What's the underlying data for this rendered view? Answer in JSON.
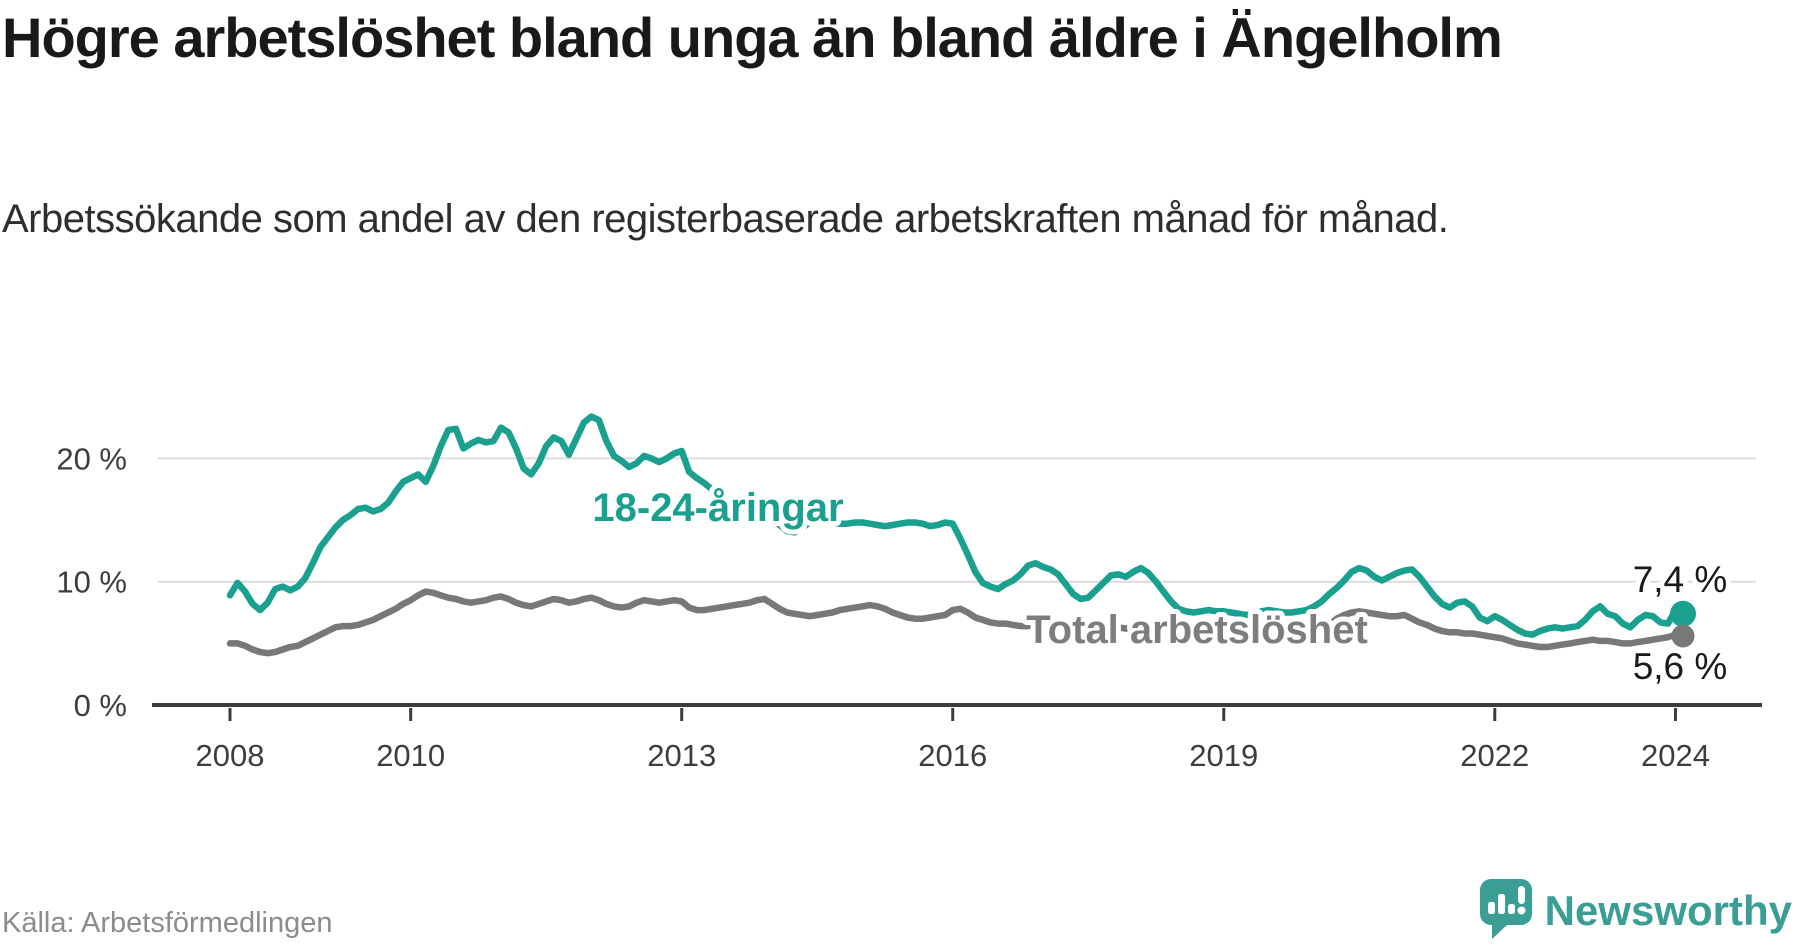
{
  "title": "Högre arbetslöshet bland unga än bland äldre i Ängelholm",
  "subtitle": "Arbetssökande som andel av den registerbaserade arbetskraften månad för månad.",
  "source": "Källa: Arbetsförmedlingen",
  "brand": {
    "name": "Newsworthy",
    "color": "#3a9e94"
  },
  "colors": {
    "young_line": "#1aa08e",
    "total_line": "#787878",
    "total_label": "#7d7d7d",
    "grid": "#dcdcdc",
    "axis": "#3c3c3c",
    "tick_text": "#3d3d3d",
    "end_label_text": "#1a1a1a"
  },
  "chart_data": {
    "type": "line",
    "x_unit": "month",
    "x_range": [
      "2008-01",
      "2024-02"
    ],
    "x_tick_labels": [
      "2008",
      "2010",
      "2013",
      "2016",
      "2019",
      "2022",
      "2024"
    ],
    "y_tick_labels": [
      "0 %",
      "10 %",
      "20 %"
    ],
    "y_tick_values": [
      0,
      10,
      20
    ],
    "ylim": [
      0,
      24
    ],
    "grid": "horizontal",
    "legend_position": "inline-labels",
    "series": [
      {
        "name": "18-24-åringar",
        "color": "#1aa08e",
        "end_label": "7,4 %",
        "end_value": 7.4,
        "values": [
          8.9,
          9.9,
          9.2,
          8.2,
          7.7,
          8.3,
          9.4,
          9.6,
          9.3,
          9.6,
          10.3,
          11.5,
          12.8,
          13.6,
          14.4,
          15.0,
          15.4,
          15.9,
          16.0,
          15.7,
          15.9,
          16.4,
          17.3,
          18.1,
          18.4,
          18.7,
          18.1,
          19.4,
          21.0,
          22.3,
          22.4,
          20.8,
          21.2,
          21.5,
          21.3,
          21.4,
          22.5,
          22.1,
          20.8,
          19.2,
          18.7,
          19.6,
          21.0,
          21.7,
          21.4,
          20.3,
          21.6,
          22.9,
          23.4,
          23.1,
          21.4,
          20.2,
          19.8,
          19.3,
          19.6,
          20.2,
          20.0,
          19.7,
          20.0,
          20.4,
          20.6,
          18.9,
          18.4,
          18.0,
          17.5,
          17.0,
          16.6,
          16.2,
          15.9,
          15.7,
          15.6,
          15.5,
          15.2,
          14.6,
          14.1,
          14.0,
          14.4,
          14.8,
          15.0,
          14.9,
          14.8,
          14.7,
          14.7,
          14.8,
          14.8,
          14.7,
          14.6,
          14.5,
          14.6,
          14.7,
          14.8,
          14.8,
          14.7,
          14.5,
          14.6,
          14.8,
          14.7,
          13.5,
          12.2,
          10.8,
          9.9,
          9.6,
          9.4,
          9.8,
          10.1,
          10.6,
          11.3,
          11.5,
          11.2,
          11.0,
          10.6,
          9.8,
          9.0,
          8.6,
          8.7,
          9.3,
          9.9,
          10.5,
          10.6,
          10.4,
          10.8,
          11.1,
          10.7,
          10.0,
          9.2,
          8.4,
          7.8,
          7.6,
          7.5,
          7.6,
          7.7,
          7.6,
          7.6,
          7.5,
          7.4,
          7.3,
          7.4,
          7.6,
          7.7,
          7.6,
          7.5,
          7.5,
          7.6,
          7.7,
          8.0,
          8.4,
          9.0,
          9.5,
          10.1,
          10.8,
          11.1,
          10.9,
          10.4,
          10.1,
          10.4,
          10.7,
          10.9,
          11.0,
          10.4,
          9.6,
          8.8,
          8.2,
          7.9,
          8.3,
          8.4,
          8.0,
          7.1,
          6.8,
          7.2,
          6.9,
          6.5,
          6.1,
          5.8,
          5.7,
          6.0,
          6.2,
          6.3,
          6.2,
          6.3,
          6.4,
          6.9,
          7.6,
          8.0,
          7.4,
          7.2,
          6.6,
          6.3,
          6.9,
          7.3,
          7.2,
          6.7,
          6.6,
          7.7,
          7.4
        ]
      },
      {
        "name": "Total arbetslöshet",
        "color": "#787878",
        "label_color": "#7d7d7d",
        "end_label": "5,6 %",
        "end_value": 5.6,
        "values": [
          5.0,
          5.0,
          4.8,
          4.5,
          4.3,
          4.2,
          4.3,
          4.5,
          4.7,
          4.8,
          5.1,
          5.4,
          5.7,
          6.0,
          6.3,
          6.4,
          6.4,
          6.5,
          6.7,
          6.9,
          7.2,
          7.5,
          7.8,
          8.2,
          8.5,
          8.9,
          9.2,
          9.1,
          8.9,
          8.7,
          8.6,
          8.4,
          8.3,
          8.4,
          8.5,
          8.7,
          8.8,
          8.6,
          8.3,
          8.1,
          8.0,
          8.2,
          8.4,
          8.6,
          8.5,
          8.3,
          8.4,
          8.6,
          8.7,
          8.5,
          8.2,
          8.0,
          7.9,
          8.0,
          8.3,
          8.5,
          8.4,
          8.3,
          8.4,
          8.5,
          8.4,
          7.9,
          7.7,
          7.7,
          7.8,
          7.9,
          8.0,
          8.1,
          8.2,
          8.3,
          8.5,
          8.6,
          8.2,
          7.8,
          7.5,
          7.4,
          7.3,
          7.2,
          7.3,
          7.4,
          7.5,
          7.7,
          7.8,
          7.9,
          8.0,
          8.1,
          8.0,
          7.8,
          7.5,
          7.3,
          7.1,
          7.0,
          7.0,
          7.1,
          7.2,
          7.3,
          7.7,
          7.8,
          7.5,
          7.1,
          6.9,
          6.7,
          6.6,
          6.6,
          6.5,
          6.4,
          6.4,
          6.5,
          6.5,
          6.4,
          6.3,
          6.2,
          6.2,
          6.3,
          6.3,
          6.4,
          6.4,
          6.3,
          6.3,
          6.2,
          6.2,
          6.1,
          6.1,
          6.0,
          6.0,
          5.9,
          5.9,
          5.9,
          5.8,
          5.8,
          5.9,
          5.9,
          5.9,
          5.8,
          5.8,
          5.8,
          5.9,
          6.0,
          6.0,
          6.0,
          5.9,
          5.9,
          6.0,
          6.0,
          6.1,
          6.2,
          6.5,
          7.0,
          7.3,
          7.5,
          7.6,
          7.5,
          7.4,
          7.3,
          7.2,
          7.2,
          7.3,
          7.0,
          6.7,
          6.5,
          6.2,
          6.0,
          5.9,
          5.9,
          5.8,
          5.8,
          5.7,
          5.6,
          5.5,
          5.4,
          5.2,
          5.0,
          4.9,
          4.8,
          4.7,
          4.7,
          4.8,
          4.9,
          5.0,
          5.1,
          5.2,
          5.3,
          5.2,
          5.2,
          5.1,
          5.0,
          5.0,
          5.1,
          5.2,
          5.3,
          5.4,
          5.5,
          5.7,
          5.6
        ]
      }
    ]
  }
}
